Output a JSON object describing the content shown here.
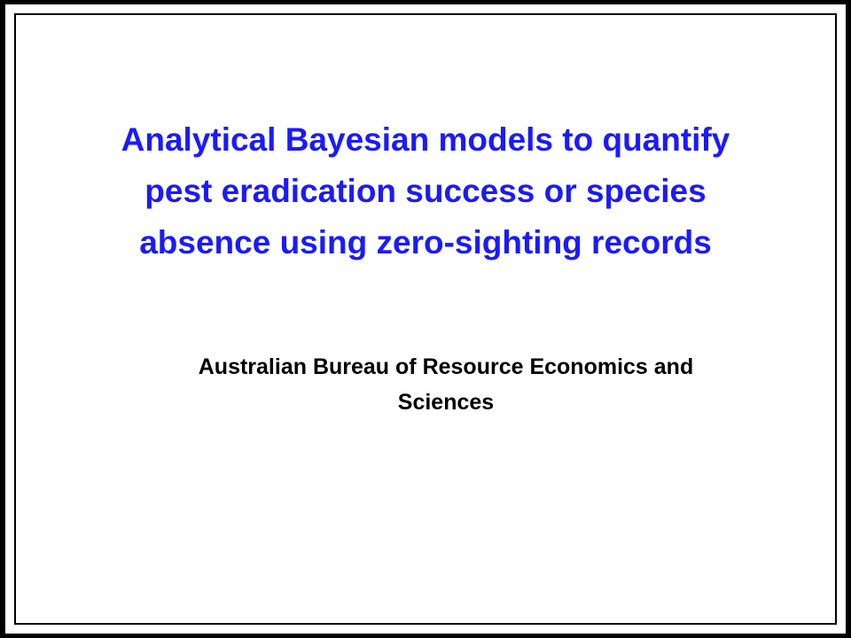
{
  "slide": {
    "title_lines": [
      "Analytical Bayesian models to quantify",
      "pest eradication success or species",
      "absence using zero-sighting records"
    ],
    "affiliation_lines": [
      "Australian Bureau of Resource Economics and",
      "Sciences"
    ]
  },
  "colors": {
    "title": "#1a1aff",
    "text": "#000000",
    "frame": "#000000",
    "background": "#ffffff"
  }
}
